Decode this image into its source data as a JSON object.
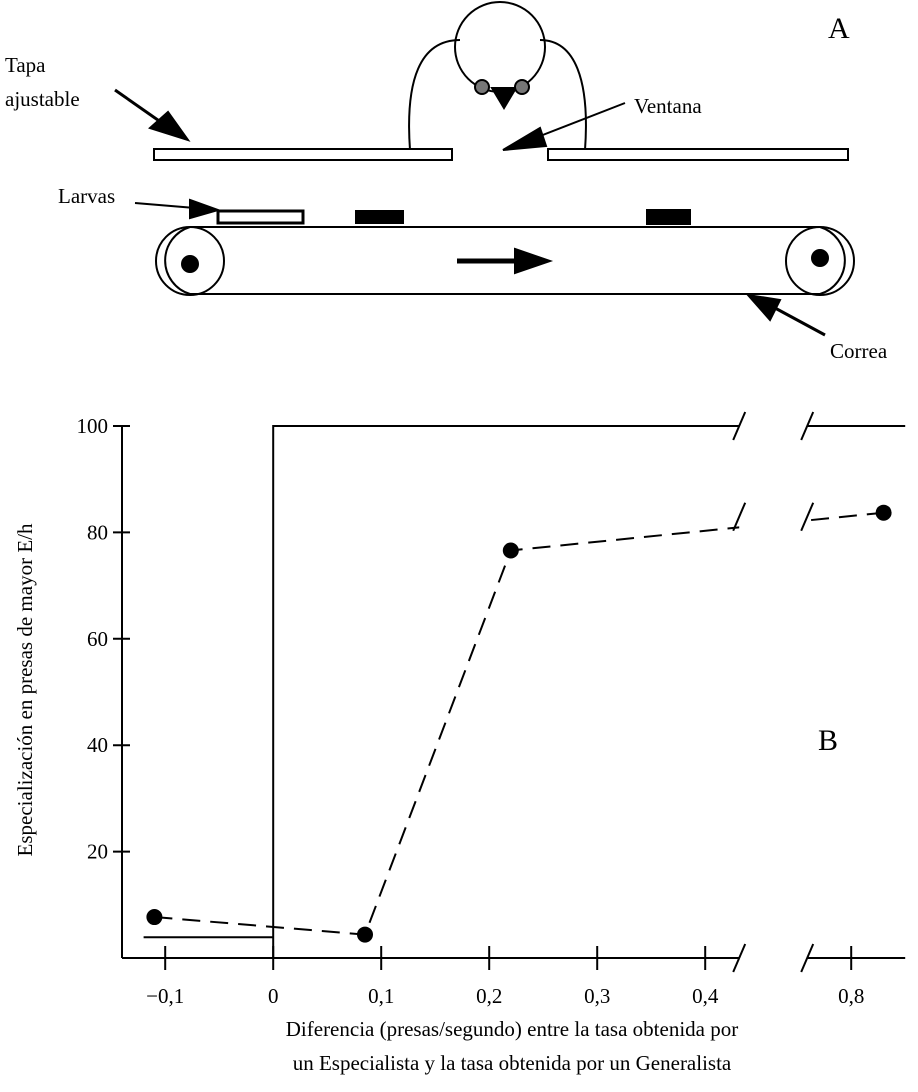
{
  "diagram": {
    "panel_label": "A",
    "lid_label": [
      "Tapa",
      "ajustable"
    ],
    "window_label": "Ventana",
    "larvae_label": "Larvas",
    "belt_label": "Correa"
  },
  "chart_data": {
    "type": "line",
    "annotation": "B",
    "ylabel": "Especialización en presas de mayor E/h",
    "xlabel": [
      "Diferencia (presas/segundo) entre la tasa obtenida por",
      "un Especialista y la tasa obtenida por un Generalista"
    ],
    "xlim": [
      -0.14,
      0.85
    ],
    "xbreak": [
      0.45,
      0.75
    ],
    "xticks": [
      {
        "value": -0.1,
        "label": "−0,1"
      },
      0,
      {
        "value": 0.1,
        "label": "0,1"
      },
      {
        "value": 0.2,
        "label": "0,2"
      },
      {
        "value": 0.3,
        "label": "0,3"
      },
      {
        "value": 0.4,
        "label": "0,4"
      },
      {
        "value": 0.8,
        "label": "0,8"
      }
    ],
    "ylim": [
      0,
      100
    ],
    "yticks": [
      20,
      40,
      60,
      80,
      100
    ],
    "series": [
      {
        "color": "#000000",
        "style": "dashed",
        "markers": true,
        "x": [
          -0.11,
          0.085,
          0.22,
          0.83
        ],
        "values": [
          7.7,
          4.4,
          76.6,
          83.7
        ]
      },
      {
        "color": "#000000",
        "style": "solid",
        "markers": false,
        "x": [
          -0.12,
          0,
          null,
          0,
          0,
          0.85
        ],
        "values": [
          3.9,
          3.9,
          null,
          0,
          100,
          100
        ]
      }
    ]
  }
}
